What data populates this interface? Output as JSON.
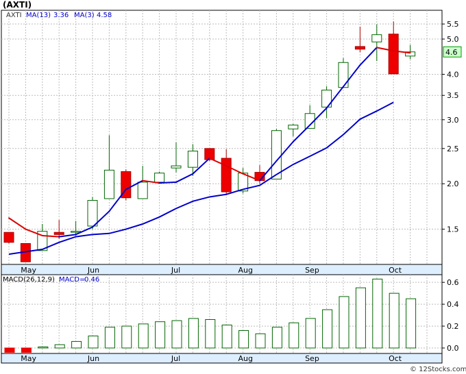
{
  "title": "(AXTI)",
  "watermark": "© 12Stocks.com",
  "colors": {
    "ma13": "#0000cc",
    "ma3_down": "#dd0000",
    "bull": "#006600",
    "bear": "#ee0000",
    "macd_bar": "#006600",
    "current_bg": "#ccffcc",
    "grid": "#bbbbbb"
  },
  "chart_data": [
    {
      "type": "candlestick",
      "legend": {
        "symbol": "AXTI",
        "ma13_label": "MA(13)",
        "ma13_value": "3.36",
        "ma3_label": "MA(3)",
        "ma3_value": "4.58"
      },
      "y_scale": "log",
      "ylim": [
        1.2,
        6.0
      ],
      "y_ticks": [
        1.5,
        2.0,
        2.5,
        3.0,
        3.5,
        4.0,
        5.0,
        5.5
      ],
      "y_tick_labels": [
        "1.5",
        "2.0",
        "2.5",
        "3.0",
        "3.5",
        "4.0",
        "5.0",
        "5.5"
      ],
      "current_price_label": "4.6",
      "current_price": 4.6,
      "x_labels": [
        {
          "label": "May",
          "week": 1.2
        },
        {
          "label": "Jun",
          "week": 5.2
        },
        {
          "label": "Jul",
          "week": 10.2
        },
        {
          "label": "Aug",
          "week": 14.2
        },
        {
          "label": "Sep",
          "week": 18.2
        },
        {
          "label": "Oct",
          "week": 23.2
        }
      ],
      "candles": [
        {
          "o": 1.47,
          "h": 1.47,
          "l": 1.37,
          "c": 1.38
        },
        {
          "o": 1.37,
          "h": 1.37,
          "l": 1.22,
          "c": 1.22
        },
        {
          "o": 1.31,
          "h": 1.55,
          "l": 1.31,
          "c": 1.48
        },
        {
          "o": 1.47,
          "h": 1.59,
          "l": 1.41,
          "c": 1.45
        },
        {
          "o": 1.48,
          "h": 1.58,
          "l": 1.44,
          "c": 1.48
        },
        {
          "o": 1.53,
          "h": 1.84,
          "l": 1.5,
          "c": 1.8
        },
        {
          "o": 1.82,
          "h": 2.72,
          "l": 1.82,
          "c": 2.18
        },
        {
          "o": 2.16,
          "h": 2.19,
          "l": 1.8,
          "c": 1.83
        },
        {
          "o": 1.82,
          "h": 2.24,
          "l": 1.82,
          "c": 2.02
        },
        {
          "o": 2.02,
          "h": 2.16,
          "l": 2.02,
          "c": 2.14
        },
        {
          "o": 2.21,
          "h": 2.6,
          "l": 2.15,
          "c": 2.24
        },
        {
          "o": 2.22,
          "h": 2.57,
          "l": 2.1,
          "c": 2.46
        },
        {
          "o": 2.5,
          "h": 2.5,
          "l": 2.31,
          "c": 2.33
        },
        {
          "o": 2.35,
          "h": 2.49,
          "l": 1.86,
          "c": 1.9
        },
        {
          "o": 1.91,
          "h": 2.21,
          "l": 1.88,
          "c": 2.14
        },
        {
          "o": 2.15,
          "h": 2.25,
          "l": 2.0,
          "c": 2.04
        },
        {
          "o": 2.06,
          "h": 2.83,
          "l": 2.06,
          "c": 2.8
        },
        {
          "o": 2.83,
          "h": 2.92,
          "l": 2.7,
          "c": 2.9
        },
        {
          "o": 2.84,
          "h": 3.29,
          "l": 2.84,
          "c": 3.12
        },
        {
          "o": 3.25,
          "h": 3.71,
          "l": 3.03,
          "c": 3.62
        },
        {
          "o": 3.68,
          "h": 4.43,
          "l": 3.68,
          "c": 4.31
        },
        {
          "o": 4.77,
          "h": 5.41,
          "l": 4.6,
          "c": 4.69
        },
        {
          "o": 4.91,
          "h": 5.49,
          "l": 4.35,
          "c": 5.14
        },
        {
          "o": 5.16,
          "h": 5.59,
          "l": 4.01,
          "c": 4.01
        },
        {
          "o": 4.49,
          "h": 4.82,
          "l": 4.4,
          "c": 4.61
        }
      ],
      "ma13": [
        1.28,
        1.3,
        1.32,
        1.38,
        1.43,
        1.45,
        1.46,
        1.5,
        1.55,
        1.62,
        1.71,
        1.79,
        1.84,
        1.87,
        1.93,
        1.98,
        2.12,
        2.26,
        2.38,
        2.51,
        2.73,
        3.01,
        3.17,
        3.35
      ],
      "ma3": [
        1.61,
        1.5,
        1.44,
        1.43,
        1.45,
        1.52,
        1.68,
        1.93,
        2.04,
        2.01,
        2.02,
        2.13,
        2.35,
        2.24,
        2.13,
        2.04,
        2.31,
        2.61,
        2.9,
        3.23,
        3.7,
        4.24,
        4.74,
        4.64,
        4.58
      ]
    },
    {
      "type": "bar",
      "legend": {
        "label": "MACD(26,12,9)",
        "value_label": "MACD",
        "value": "0.46"
      },
      "ylim": [
        -0.05,
        0.67
      ],
      "y_ticks": [
        0.0,
        0.2,
        0.4,
        0.6
      ],
      "y_tick_labels": [
        "0.0",
        "0.2",
        "0.4",
        "0.6"
      ],
      "values": [
        -0.04,
        -0.04,
        0.01,
        0.03,
        0.06,
        0.11,
        0.19,
        0.2,
        0.22,
        0.24,
        0.25,
        0.27,
        0.26,
        0.21,
        0.16,
        0.13,
        0.19,
        0.23,
        0.27,
        0.35,
        0.47,
        0.55,
        0.63,
        0.5,
        0.45
      ]
    }
  ]
}
